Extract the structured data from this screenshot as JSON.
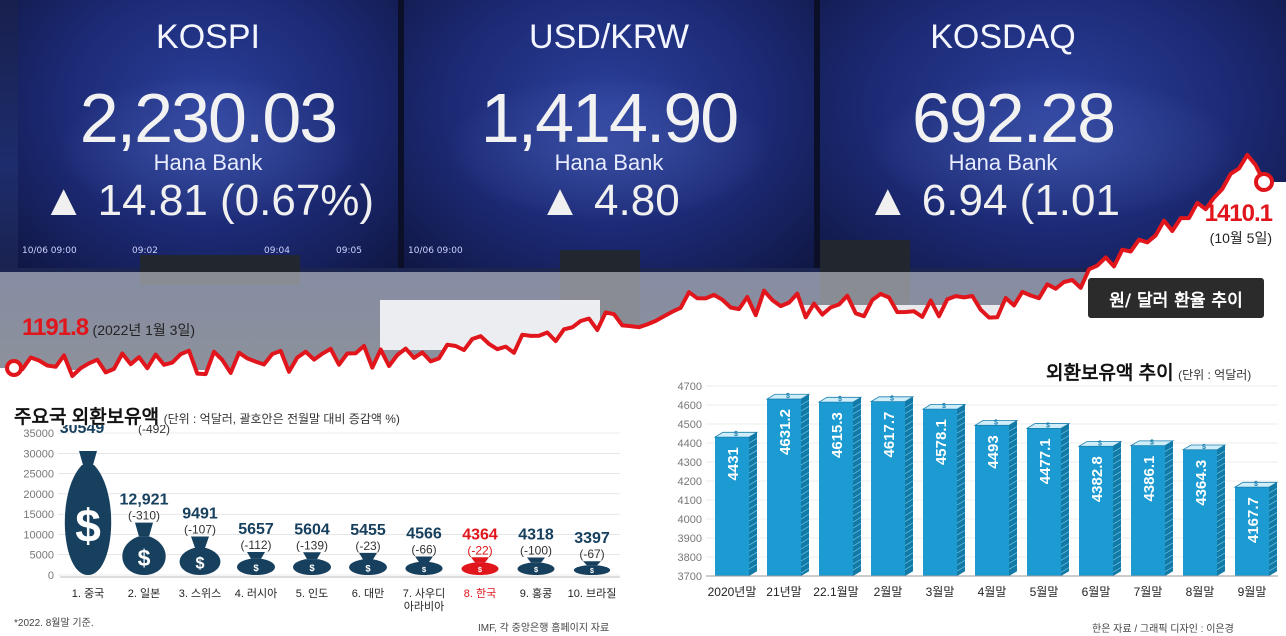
{
  "photo": {
    "screens": [
      {
        "title": "KOSPI",
        "value": "2,230.03",
        "bank": "Hana Bank",
        "change": "▲ 14.81  (0.67%)",
        "times": [
          "10/06 09:00",
          "09:02",
          "09:04",
          "09:05"
        ]
      },
      {
        "title": "USD/KRW",
        "value": "1,414.90",
        "bank": "Hana Bank",
        "change": "▲ 4.80",
        "times": [
          "10/06 09:00"
        ]
      },
      {
        "title": "KOSDAQ",
        "value": "692.28",
        "bank": "Hana Bank",
        "change": "▲ 6.94  (1.01",
        "times": []
      }
    ]
  },
  "fx_line": {
    "title": "원/ 달러 환율 추이",
    "start_value": "1191.8",
    "start_date": "(2022년 1월 3일)",
    "end_value": "1410.1",
    "end_date": "(10월 5일)",
    "line_color": "#e0161c"
  },
  "chart_data": [
    {
      "type": "bar",
      "title": "주요국 외환보유액",
      "subtitle": "(단위 : 억달러, 괄호안은 전월말 대비 증감액 %)",
      "ylim": [
        0,
        35000
      ],
      "yticks": [
        "35000",
        "30000",
        "25000",
        "20000",
        "15000",
        "10000",
        "5000",
        "0"
      ],
      "categories": [
        "1. 중국",
        "2. 일본",
        "3. 스위스",
        "4. 러시아",
        "5. 인도",
        "6. 대만",
        "7. 사우디\n아라비아",
        "8. 한국",
        "9. 홍콩",
        "10. 브라질"
      ],
      "values": [
        30549,
        12921,
        9491,
        5657,
        5604,
        5455,
        4566,
        4364,
        4318,
        3397
      ],
      "value_labels": [
        "30549",
        "12,921",
        "9491",
        "5657",
        "5604",
        "5455",
        "4566",
        "4364",
        "4318",
        "3397"
      ],
      "change_labels": [
        "(-492)",
        "(-310)",
        "(-107)",
        "(-112)",
        "(-139)",
        "(-23)",
        "(-66)",
        "(-22)",
        "(-100)",
        "(-67)"
      ],
      "highlight_index": 7,
      "bar_color": "#17405e",
      "highlight_color": "#e0161c",
      "icon": "money-bag-icon",
      "footnote": "*2022. 8월말 기준.",
      "source": "IMF, 각 중앙은행 홈페이지 자료"
    },
    {
      "type": "bar",
      "title": "외환보유액 추이",
      "subtitle": "(단위 : 억달러)",
      "ylim": [
        3700,
        4700
      ],
      "yticks": [
        "4700",
        "4600",
        "4500",
        "4400",
        "4300",
        "4200",
        "4100",
        "4000",
        "3900",
        "3800",
        "3700"
      ],
      "categories": [
        "2020년말",
        "21년말",
        "22.1월말",
        "2월말",
        "3월말",
        "4월말",
        "5월말",
        "6월말",
        "7월말",
        "8월말",
        "9월말"
      ],
      "values": [
        4431,
        4631.2,
        4615.3,
        4617.7,
        4578.1,
        4493,
        4477.1,
        4382.8,
        4386.1,
        4364.3,
        4167.7
      ],
      "value_labels": [
        "4431",
        "4631.2",
        "4615.3",
        "4617.7",
        "4578.1",
        "4493",
        "4477.1",
        "4382.8",
        "4386.1",
        "4364.3",
        "4167.7"
      ],
      "bar_color": "#1b9bd1",
      "icon": "dollar-bill-icon",
      "source": "한은 자료 / 그래픽 디자인 : 이은경"
    }
  ]
}
